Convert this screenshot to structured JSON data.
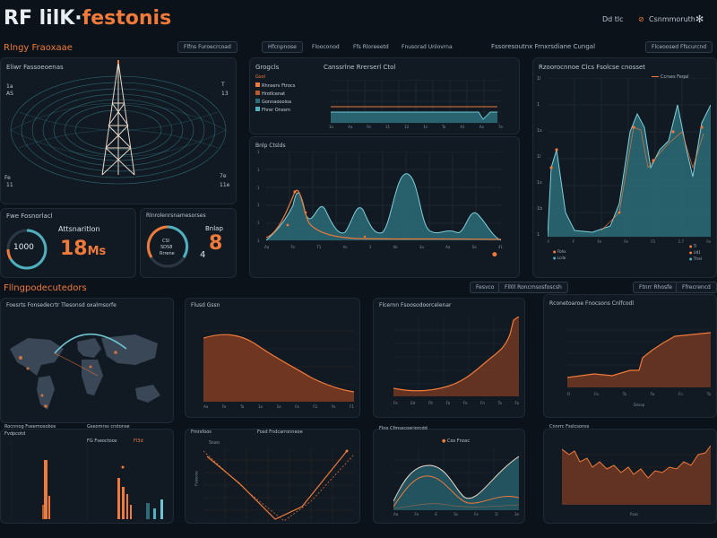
{
  "header": {
    "logo_rf": "RF lilK·",
    "logo_rest": "festonis",
    "top_right_link": "Dd tlc",
    "top_right_label": "Csnmmoruth",
    "accent": "#f07a3a",
    "bg": "#0c1219"
  },
  "section1": {
    "title": "Rlngy Fraoxaae",
    "pills": [
      "Flfns Furoecrcoad",
      "Hfcnpnose",
      "Flooconod",
      "Ffs Rloreeetd",
      "Fnusorad Unlovrna"
    ],
    "right_label": "Fssoresoutnx Frnxrsdiane Cungal",
    "right_pill": "Flceoosed Ffscurcnd"
  },
  "tower_panel": {
    "title": "Eliwr Fassoeoenas",
    "labels_left": [
      "1a",
      "AS",
      "Fe",
      "11"
    ],
    "labels_right": [
      "T",
      "13",
      "7e",
      "11e"
    ]
  },
  "gauge1": {
    "title": "Fwe Fosnorlacl",
    "value": "1000"
  },
  "metric1": {
    "label": "Attsnaritlon",
    "value": "18",
    "unit": "Ms"
  },
  "gauge2": {
    "title": "Rlnrolenrsnamesorses",
    "sub1": "CSl",
    "sub2": "SDS8",
    "sub3": "Rrrene"
  },
  "metric2": {
    "label": "Bnlap",
    "value": "8",
    "prefix": "4"
  },
  "chart_top": {
    "title": "Grogcls",
    "subtitle": "Canssrlne Rrerserl Ctol",
    "legend": [
      "Gsol",
      "Rhnserv Ftrocs",
      "Hrotlcenat",
      "Gonnaoooioa",
      "Fhrer Onssrn"
    ],
    "xticks": [
      "1o",
      "Aa",
      "Fe",
      "11",
      "12",
      "1s",
      "To",
      "A1",
      "Aa",
      "7e"
    ]
  },
  "chart_mid": {
    "title": "Bnlp Ctslds",
    "xticks": [
      "Aa",
      "Fe",
      "T1",
      "As",
      "3",
      "4e",
      "3a",
      "Aa",
      "Sa",
      "41"
    ],
    "yticks": [
      "1",
      "1",
      "1",
      "1",
      "1",
      "1"
    ]
  },
  "chart_right": {
    "title": "Rzoorocnnoe Clcs Fsolcse cnosset",
    "subtitle": "Ccrses Feqal",
    "yticks": [
      "1l",
      "1",
      "1s",
      "1l",
      "1s",
      "1b",
      "1"
    ],
    "xticks": [
      "F",
      "F",
      "Fe",
      "Fe",
      "F1",
      "1.7",
      "Fe"
    ],
    "legend": [
      "Fbhx",
      "Lcdo",
      "Tl",
      "Ud1",
      "Ttrel"
    ]
  },
  "section2": {
    "title": "Fllngpodecutedors",
    "pills": [
      "Fesvco",
      "Fll0l Roncmsosfoscsh",
      "Ftnrr Rhosfe",
      "Ffrecrencd"
    ]
  },
  "map_panel": {
    "title": "Foesrts Fonsedecrtr Tlesonsd oxalmsorfe"
  },
  "area1": {
    "title": "Flusd Gssn",
    "xticks": [
      "Aa",
      "Fe",
      "Ta",
      "1e",
      "1e",
      "Fa",
      "F2",
      "Fe",
      "F1"
    ]
  },
  "area2": {
    "title": "Flcernn Fsoosodoorcelenar",
    "xticks": [
      "Fe",
      "Ed",
      "Flt",
      "Fo",
      "Fe",
      "Fn",
      "Ta",
      "Fa"
    ]
  },
  "area3": {
    "title": "Rconetoaroe Fnocsons Cnlfcodl",
    "xticks": [
      "Fl",
      "Fe",
      "Ta",
      "Fa",
      "Fn",
      "Ta"
    ],
    "footer": "Dssep"
  },
  "bars_panel": {
    "title": "Rocnnog Fseemosobos",
    "sub": "Fvdpcotd",
    "title2": "Gseomrss crstonse",
    "sub2": "FG Fseoctoox",
    "highlight": "Fl3d"
  },
  "lines_panel": {
    "title": "Fmrsfoos",
    "sub": "Fosd Fndcarronneoe",
    "xtick": "Ssao",
    "caption": "Fsoocne"
  },
  "wave_panel": {
    "title": "Flno Cfmsscoeriorcdd",
    "tag": "Cos Fnosc",
    "xticks": [
      "Aa",
      "Fe",
      "E",
      "Ss",
      "Fe",
      "1l",
      "3e"
    ]
  },
  "noise_panel": {
    "title": "Cnnrrc Fsslcsonss",
    "footer": "Rsoc"
  }
}
